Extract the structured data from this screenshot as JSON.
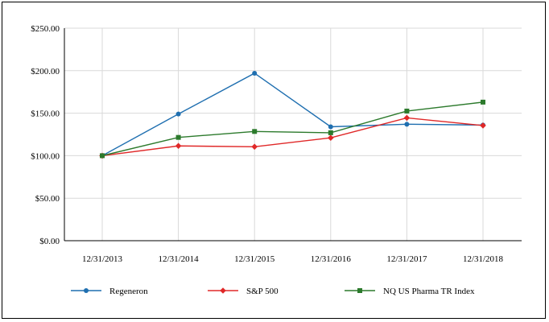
{
  "chart_data": {
    "type": "line",
    "x": [
      "12/31/2013",
      "12/31/2014",
      "12/31/2015",
      "12/31/2016",
      "12/31/2017",
      "12/31/2018"
    ],
    "series": [
      {
        "name": "Regeneron",
        "values": [
          100,
          149,
          197,
          134,
          137,
          136
        ],
        "color": "#1f6fb0",
        "marker": "circle"
      },
      {
        "name": "S&P 500",
        "values": [
          100,
          111.5,
          110.5,
          121,
          144.5,
          135.5
        ],
        "color": "#e02828",
        "marker": "diamond"
      },
      {
        "name": "NQ US Pharma TR Index",
        "values": [
          100,
          121.5,
          128.5,
          127,
          152.5,
          163
        ],
        "color": "#2c7a2c",
        "marker": "square"
      }
    ],
    "yticks": [
      "$0.00",
      "$50.00",
      "$100.00",
      "$150.00",
      "$200.00",
      "$250.00"
    ],
    "ylim": [
      0,
      250
    ],
    "grid": true,
    "legend_position": "bottom"
  }
}
